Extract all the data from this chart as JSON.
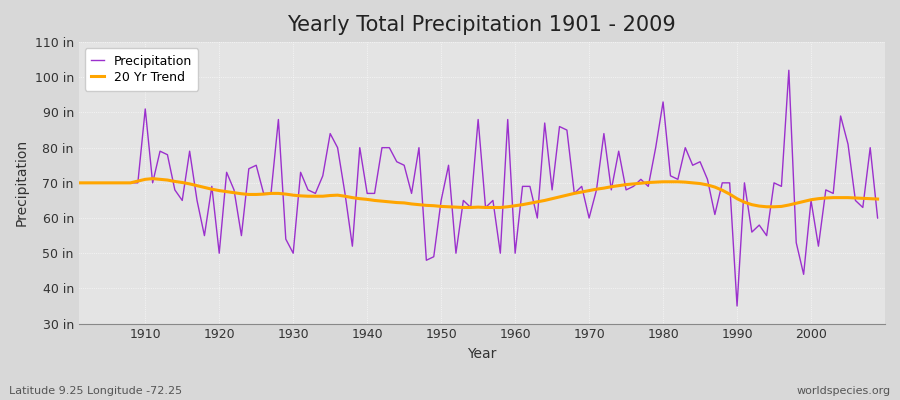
{
  "title": "Yearly Total Precipitation 1901 - 2009",
  "xlabel": "Year",
  "ylabel": "Precipitation",
  "subtitle": "Latitude 9.25 Longitude -72.25",
  "watermark": "worldspecies.org",
  "ylim": [
    30,
    110
  ],
  "yticks": [
    30,
    40,
    50,
    60,
    70,
    80,
    90,
    100,
    110
  ],
  "ytick_labels": [
    "30 in",
    "40 in",
    "50 in",
    "60 in",
    "70 in",
    "80 in",
    "90 in",
    "100 in",
    "110 in"
  ],
  "years": [
    1901,
    1902,
    1903,
    1904,
    1905,
    1906,
    1907,
    1908,
    1909,
    1910,
    1911,
    1912,
    1913,
    1914,
    1915,
    1916,
    1917,
    1918,
    1919,
    1920,
    1921,
    1922,
    1923,
    1924,
    1925,
    1926,
    1927,
    1928,
    1929,
    1930,
    1931,
    1932,
    1933,
    1934,
    1935,
    1936,
    1937,
    1938,
    1939,
    1940,
    1941,
    1942,
    1943,
    1944,
    1945,
    1946,
    1947,
    1948,
    1949,
    1950,
    1951,
    1952,
    1953,
    1954,
    1955,
    1956,
    1957,
    1958,
    1959,
    1960,
    1961,
    1962,
    1963,
    1964,
    1965,
    1966,
    1967,
    1968,
    1969,
    1970,
    1971,
    1972,
    1973,
    1974,
    1975,
    1976,
    1977,
    1978,
    1979,
    1980,
    1981,
    1982,
    1983,
    1984,
    1985,
    1986,
    1987,
    1988,
    1989,
    1990,
    1991,
    1992,
    1993,
    1994,
    1995,
    1996,
    1997,
    1998,
    1999,
    2000,
    2001,
    2002,
    2003,
    2004,
    2005,
    2006,
    2007,
    2008,
    2009
  ],
  "precip": [
    70,
    70,
    70,
    70,
    70,
    70,
    70,
    70,
    70,
    91,
    70,
    79,
    78,
    68,
    65,
    79,
    65,
    55,
    69,
    50,
    73,
    68,
    55,
    74,
    75,
    67,
    67,
    88,
    54,
    50,
    73,
    68,
    67,
    72,
    84,
    80,
    67,
    52,
    80,
    67,
    67,
    80,
    80,
    76,
    75,
    67,
    80,
    48,
    49,
    65,
    75,
    50,
    65,
    63,
    88,
    63,
    65,
    50,
    88,
    50,
    69,
    69,
    60,
    87,
    68,
    86,
    85,
    67,
    69,
    60,
    68,
    84,
    68,
    79,
    68,
    69,
    71,
    69,
    80,
    93,
    72,
    71,
    80,
    75,
    76,
    71,
    61,
    70,
    70,
    35,
    70,
    56,
    58,
    55,
    70,
    69,
    102,
    53,
    44,
    65,
    52,
    68,
    67,
    89,
    81,
    65,
    63,
    80,
    60
  ],
  "trend": [
    70.0,
    70.0,
    70.0,
    70.0,
    70.0,
    70.0,
    70.0,
    70.0,
    70.5,
    71.0,
    71.2,
    71.0,
    70.8,
    70.4,
    70.1,
    69.7,
    69.2,
    68.7,
    68.2,
    67.8,
    67.5,
    67.2,
    66.9,
    66.7,
    66.7,
    66.8,
    67.0,
    67.0,
    66.8,
    66.5,
    66.3,
    66.2,
    66.2,
    66.2,
    66.4,
    66.5,
    66.2,
    65.8,
    65.5,
    65.3,
    65.0,
    64.8,
    64.6,
    64.4,
    64.3,
    64.0,
    63.8,
    63.6,
    63.5,
    63.3,
    63.2,
    63.1,
    63.0,
    63.0,
    63.1,
    63.0,
    63.0,
    63.0,
    63.2,
    63.5,
    63.8,
    64.2,
    64.6,
    65.0,
    65.5,
    66.0,
    66.5,
    67.0,
    67.4,
    67.8,
    68.2,
    68.5,
    68.9,
    69.2,
    69.5,
    69.7,
    69.9,
    70.1,
    70.2,
    70.3,
    70.3,
    70.3,
    70.2,
    70.0,
    69.8,
    69.4,
    68.8,
    67.9,
    66.8,
    65.5,
    64.5,
    63.8,
    63.4,
    63.2,
    63.2,
    63.3,
    63.7,
    64.2,
    64.7,
    65.2,
    65.5,
    65.7,
    65.8,
    65.8,
    65.8,
    65.7,
    65.6,
    65.5,
    65.4
  ],
  "precip_color": "#9B30CD",
  "trend_color": "#FFA500",
  "fig_bg_color": "#D8D8D8",
  "plot_bg_color": "#E4E4E4",
  "grid_color": "#FFFFFF",
  "title_fontsize": 15,
  "label_fontsize": 10,
  "tick_fontsize": 9,
  "xticks": [
    1910,
    1920,
    1930,
    1940,
    1950,
    1960,
    1970,
    1980,
    1990,
    2000
  ],
  "xlim": [
    1901,
    2010
  ]
}
